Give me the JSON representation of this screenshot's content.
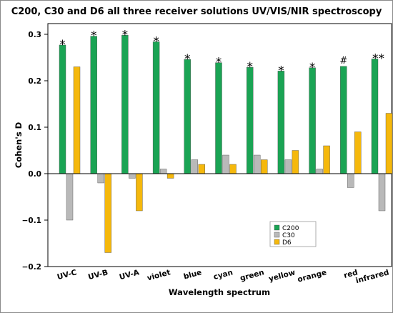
{
  "chart_data": {
    "type": "bar",
    "title": "C200, C30 and D6 all three receiver solutions UV/VIS/NIR spectroscopy",
    "xlabel": "Wavelength spectrum",
    "ylabel": "Cohen's D",
    "ylim": [
      -0.2,
      0.3
    ],
    "yticks": [
      "0.3",
      "0.2",
      "0.1",
      "0.0",
      "−0.1",
      "−0.2"
    ],
    "ytick_values": [
      0.3,
      0.2,
      0.1,
      0.0,
      -0.1,
      -0.2
    ],
    "categories": [
      "UV-C",
      "UV-B",
      "UV-A",
      "violet",
      "blue",
      "cyan",
      "green",
      "yellow",
      "orange",
      "red",
      "infrared"
    ],
    "series": [
      {
        "name": "C200",
        "color": "#1aa454",
        "values": [
          0.277,
          0.296,
          0.298,
          0.284,
          0.246,
          0.239,
          0.229,
          0.221,
          0.228,
          0.231,
          0.247
        ]
      },
      {
        "name": "C30",
        "color": "#b9b9b9",
        "values": [
          -0.1,
          -0.02,
          -0.01,
          0.01,
          0.03,
          0.04,
          0.04,
          0.03,
          0.01,
          -0.03,
          -0.08
        ]
      },
      {
        "name": "D6",
        "color": "#f5b80c",
        "values": [
          0.23,
          -0.17,
          -0.08,
          -0.01,
          0.02,
          0.02,
          0.03,
          0.05,
          0.06,
          0.09,
          0.13
        ]
      }
    ],
    "annotations": [
      "*",
      "*",
      "*",
      "*",
      "*",
      "*",
      "*",
      "*",
      "*",
      "#",
      "**"
    ],
    "legend_position": "bottom-right",
    "grid": false
  }
}
